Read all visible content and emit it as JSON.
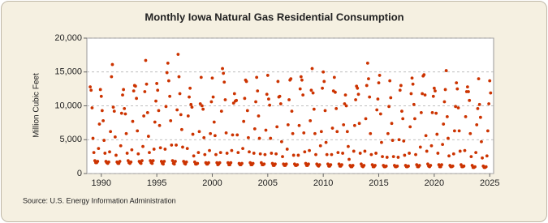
{
  "chart_data": {
    "type": "scatter",
    "title": "Monthly Iowa Natural Gas Residential Consumption",
    "y_label": "Million Cubic Feet",
    "source": "Source: U.S. Energy Information Administration",
    "color": "#cc3300",
    "grid": true,
    "xlim": [
      1988.7,
      2025.35
    ],
    "xticks": [
      1990,
      1995,
      2000,
      2005,
      2010,
      2015,
      2020,
      2025
    ],
    "ylim": [
      0,
      20000
    ],
    "yticks": [
      0,
      {
        "value": 5000,
        "label": "5,000"
      },
      {
        "value": 10000,
        "label": "10,000"
      },
      {
        "value": 15000,
        "label": "15,000"
      },
      {
        "value": 20000,
        "label": "20,000"
      }
    ],
    "x": [
      1989,
      1989.08,
      1989.17,
      1989.25,
      1989.33,
      1989.42,
      1989.5,
      1989.58,
      1989.67,
      1989.75,
      1989.83,
      1989.92,
      1990,
      1990.08,
      1990.17,
      1990.25,
      1990.33,
      1990.42,
      1990.5,
      1990.58,
      1990.67,
      1990.75,
      1990.83,
      1990.92,
      1991,
      1991.08,
      1991.17,
      1991.25,
      1991.33,
      1991.42,
      1991.5,
      1991.58,
      1991.67,
      1991.75,
      1991.83,
      1991.92,
      1992,
      1992.08,
      1992.17,
      1992.25,
      1992.33,
      1992.42,
      1992.5,
      1992.58,
      1992.67,
      1992.75,
      1992.83,
      1992.92,
      1993,
      1993.08,
      1993.17,
      1993.25,
      1993.33,
      1993.42,
      1993.5,
      1993.58,
      1993.67,
      1993.75,
      1993.83,
      1993.92,
      1994,
      1994.08,
      1994.17,
      1994.25,
      1994.33,
      1994.42,
      1994.5,
      1994.58,
      1994.67,
      1994.75,
      1994.83,
      1994.92,
      1995,
      1995.08,
      1995.17,
      1995.25,
      1995.33,
      1995.42,
      1995.5,
      1995.58,
      1995.67,
      1995.75,
      1995.83,
      1995.92,
      1996,
      1996.08,
      1996.17,
      1996.25,
      1996.33,
      1996.42,
      1996.5,
      1996.58,
      1996.67,
      1996.75,
      1996.83,
      1996.92,
      1997,
      1997.08,
      1997.17,
      1997.25,
      1997.33,
      1997.42,
      1997.5,
      1997.58,
      1997.67,
      1997.75,
      1997.83,
      1997.92,
      1998,
      1998.08,
      1998.17,
      1998.25,
      1998.33,
      1998.42,
      1998.5,
      1998.58,
      1998.67,
      1998.75,
      1998.83,
      1998.92,
      1999,
      1999.08,
      1999.17,
      1999.25,
      1999.33,
      1999.42,
      1999.5,
      1999.58,
      1999.67,
      1999.75,
      1999.83,
      1999.92,
      2000,
      2000.08,
      2000.17,
      2000.25,
      2000.33,
      2000.42,
      2000.5,
      2000.58,
      2000.67,
      2000.75,
      2000.83,
      2000.92,
      2001,
      2001.08,
      2001.17,
      2001.25,
      2001.33,
      2001.42,
      2001.5,
      2001.58,
      2001.67,
      2001.75,
      2001.83,
      2001.92,
      2002,
      2002.08,
      2002.17,
      2002.25,
      2002.33,
      2002.42,
      2002.5,
      2002.58,
      2002.67,
      2002.75,
      2002.83,
      2002.92,
      2003,
      2003.08,
      2003.17,
      2003.25,
      2003.33,
      2003.42,
      2003.5,
      2003.58,
      2003.67,
      2003.75,
      2003.83,
      2003.92,
      2004,
      2004.08,
      2004.17,
      2004.25,
      2004.33,
      2004.42,
      2004.5,
      2004.58,
      2004.67,
      2004.75,
      2004.83,
      2004.92,
      2005,
      2005.08,
      2005.17,
      2005.25,
      2005.33,
      2005.42,
      2005.5,
      2005.58,
      2005.67,
      2005.75,
      2005.83,
      2005.92,
      2006,
      2006.08,
      2006.17,
      2006.25,
      2006.33,
      2006.42,
      2006.5,
      2006.58,
      2006.67,
      2006.75,
      2006.83,
      2006.92,
      2007,
      2007.08,
      2007.17,
      2007.25,
      2007.33,
      2007.42,
      2007.5,
      2007.58,
      2007.67,
      2007.75,
      2007.83,
      2007.92,
      2008,
      2008.08,
      2008.17,
      2008.25,
      2008.33,
      2008.42,
      2008.5,
      2008.58,
      2008.67,
      2008.75,
      2008.83,
      2008.92,
      2009,
      2009.08,
      2009.17,
      2009.25,
      2009.33,
      2009.42,
      2009.5,
      2009.58,
      2009.67,
      2009.75,
      2009.83,
      2009.92,
      2010,
      2010.08,
      2010.17,
      2010.25,
      2010.33,
      2010.42,
      2010.5,
      2010.58,
      2010.67,
      2010.75,
      2010.83,
      2010.92,
      2011,
      2011.08,
      2011.17,
      2011.25,
      2011.33,
      2011.42,
      2011.5,
      2011.58,
      2011.67,
      2011.75,
      2011.83,
      2011.92,
      2012,
      2012.08,
      2012.17,
      2012.25,
      2012.33,
      2012.42,
      2012.5,
      2012.58,
      2012.67,
      2012.75,
      2012.83,
      2012.92,
      2013,
      2013.08,
      2013.17,
      2013.25,
      2013.33,
      2013.42,
      2013.5,
      2013.58,
      2013.67,
      2013.75,
      2013.83,
      2013.92,
      2014,
      2014.08,
      2014.17,
      2014.25,
      2014.33,
      2014.42,
      2014.5,
      2014.58,
      2014.67,
      2014.75,
      2014.83,
      2014.92,
      2015,
      2015.08,
      2015.17,
      2015.25,
      2015.33,
      2015.42,
      2015.5,
      2015.58,
      2015.67,
      2015.75,
      2015.83,
      2015.92,
      2016,
      2016.08,
      2016.17,
      2016.25,
      2016.33,
      2016.42,
      2016.5,
      2016.58,
      2016.67,
      2016.75,
      2016.83,
      2016.92,
      2017,
      2017.08,
      2017.17,
      2017.25,
      2017.33,
      2017.42,
      2017.5,
      2017.58,
      2017.67,
      2017.75,
      2017.83,
      2017.92,
      2018,
      2018.08,
      2018.17,
      2018.25,
      2018.33,
      2018.42,
      2018.5,
      2018.58,
      2018.67,
      2018.75,
      2018.83,
      2018.92,
      2019,
      2019.08,
      2019.17,
      2019.25,
      2019.33,
      2019.42,
      2019.5,
      2019.58,
      2019.67,
      2019.75,
      2019.83,
      2019.92,
      2020,
      2020.08,
      2020.17,
      2020.25,
      2020.33,
      2020.42,
      2020.5,
      2020.58,
      2020.67,
      2020.75,
      2020.83,
      2020.92,
      2021,
      2021.08,
      2021.17,
      2021.25,
      2021.33,
      2021.42,
      2021.5,
      2021.58,
      2021.67,
      2021.75,
      2021.83,
      2021.92,
      2022,
      2022.08,
      2022.17,
      2022.25,
      2022.33,
      2022.42,
      2022.5,
      2022.58,
      2022.67,
      2022.75,
      2022.83,
      2022.92,
      2023,
      2023.08,
      2023.17,
      2023.25,
      2023.33,
      2023.42,
      2023.5,
      2023.58,
      2023.67,
      2023.75,
      2023.83,
      2023.92,
      2024,
      2024.08,
      2024.17,
      2024.25,
      2024.33,
      2024.42,
      2024.5,
      2024.58,
      2024.67,
      2024.75,
      2024.83,
      2024.92,
      2025,
      2025.08
    ],
    "values": [
      12800,
      12300,
      9700,
      5200,
      3100,
      1900,
      1600,
      1600,
      1800,
      3700,
      7300,
      12400,
      11400,
      9300,
      7800,
      4900,
      3000,
      1800,
      1600,
      1500,
      1700,
      3200,
      6200,
      14300,
      16100,
      9800,
      9200,
      5400,
      2700,
      1700,
      1500,
      1500,
      1800,
      4100,
      8900,
      11600,
      12400,
      9600,
      8800,
      5900,
      3000,
      1900,
      1600,
      1500,
      1700,
      3500,
      7700,
      12200,
      13000,
      12900,
      11100,
      6300,
      2900,
      1800,
      1600,
      1500,
      1900,
      4000,
      8500,
      12100,
      16700,
      13200,
      9000,
      5500,
      3100,
      1900,
      1600,
      1500,
      1900,
      3600,
      7600,
      10700,
      13300,
      12300,
      9300,
      7100,
      3800,
      1800,
      1500,
      1400,
      1800,
      3600,
      9900,
      14900,
      16300,
      13700,
      11400,
      7800,
      4200,
      1900,
      1500,
      1400,
      1800,
      4200,
      9400,
      17600,
      14300,
      11800,
      8700,
      6500,
      3900,
      1800,
      1500,
      1400,
      1700,
      3700,
      8500,
      11300,
      12600,
      10200,
      9800,
      5800,
      2600,
      1700,
      1400,
      1400,
      1500,
      3100,
      6200,
      10300,
      14200,
      10000,
      9500,
      5300,
      2800,
      1600,
      1400,
      1400,
      1600,
      3400,
      5900,
      10600,
      14100,
      11300,
      7600,
      5600,
      2800,
      1600,
      1300,
      1400,
      1600,
      3100,
      9200,
      15500,
      14800,
      13500,
      10900,
      6000,
      3000,
      1600,
      1300,
      1300,
      1600,
      3400,
      5700,
      10400,
      11800,
      10700,
      10800,
      5700,
      3100,
      1500,
      1300,
      1300,
      1500,
      3700,
      7700,
      11100,
      13800,
      13600,
      9300,
      5300,
      3200,
      1600,
      1300,
      1300,
      1500,
      3000,
      6600,
      10600,
      14200,
      12200,
      8500,
      5200,
      2900,
      1600,
      1300,
      1300,
      1400,
      2800,
      6400,
      11700,
      14500,
      11000,
      10100,
      5200,
      3000,
      1500,
      1200,
      1200,
      1400,
      2900,
      6900,
      13600,
      11300,
      11400,
      10300,
      4700,
      2500,
      1400,
      1200,
      1200,
      1400,
      3600,
      7200,
      10900,
      13800,
      14000,
      9200,
      5900,
      2700,
      1400,
      1200,
      1200,
      1300,
      2700,
      7100,
      12500,
      14300,
      13800,
      11600,
      6000,
      3200,
      1500,
      1200,
      1200,
      1400,
      3400,
      7800,
      12300,
      15500,
      11900,
      9500,
      5900,
      2800,
      1400,
      1200,
      1100,
      1300,
      4100,
      6200,
      12600,
      15000,
      13600,
      9300,
      4600,
      2800,
      1400,
      1100,
      1100,
      1300,
      2800,
      6700,
      12200,
      14200,
      12000,
      9600,
      6200,
      3100,
      1400,
      1100,
      1100,
      1300,
      3000,
      7200,
      10300,
      11600,
      10000,
      6200,
      4000,
      2100,
      1200,
      1000,
      1000,
      1200,
      3300,
      7100,
      10900,
      12900,
      12600,
      11700,
      7400,
      3000,
      1400,
      1100,
      1000,
      1200,
      3300,
      8100,
      13000,
      16300,
      14000,
      11300,
      5900,
      2800,
      1300,
      1000,
      1000,
      1200,
      3000,
      9400,
      11000,
      13400,
      14500,
      8800,
      4600,
      2500,
      1200,
      1000,
      1000,
      1100,
      2400,
      5900,
      9900,
      13700,
      11200,
      7400,
      4900,
      2500,
      1200,
      1000,
      1000,
      1100,
      2400,
      5000,
      12300,
      13000,
      9200,
      8100,
      4800,
      2700,
      1200,
      1000,
      1000,
      1100,
      3000,
      6900,
      11800,
      14100,
      13200,
      10200,
      8100,
      2800,
      1300,
      1000,
      1000,
      1200,
      3900,
      9000,
      11800,
      14400,
      14600,
      11600,
      5600,
      3300,
      1400,
      1100,
      1000,
      1200,
      4100,
      9000,
      11400,
      12600,
      12200,
      8900,
      5800,
      3000,
      1300,
      1000,
      1000,
      1300,
      4300,
      7300,
      10600,
      12400,
      15200,
      8400,
      5200,
      2600,
      1200,
      1000,
      1000,
      1100,
      2900,
      6300,
      9900,
      13400,
      12500,
      9700,
      6300,
      3300,
      1300,
      1000,
      1000,
      1100,
      3400,
      8400,
      12100,
      12800,
      12100,
      10800,
      5900,
      2500,
      1200,
      900,
      900,
      1000,
      3100,
      7200,
      9600,
      14000,
      10200,
      8300,
      4700,
      2300,
      1100,
      900,
      900,
      1000,
      2600,
      6300,
      10300,
      13700,
      11900
    ]
  }
}
